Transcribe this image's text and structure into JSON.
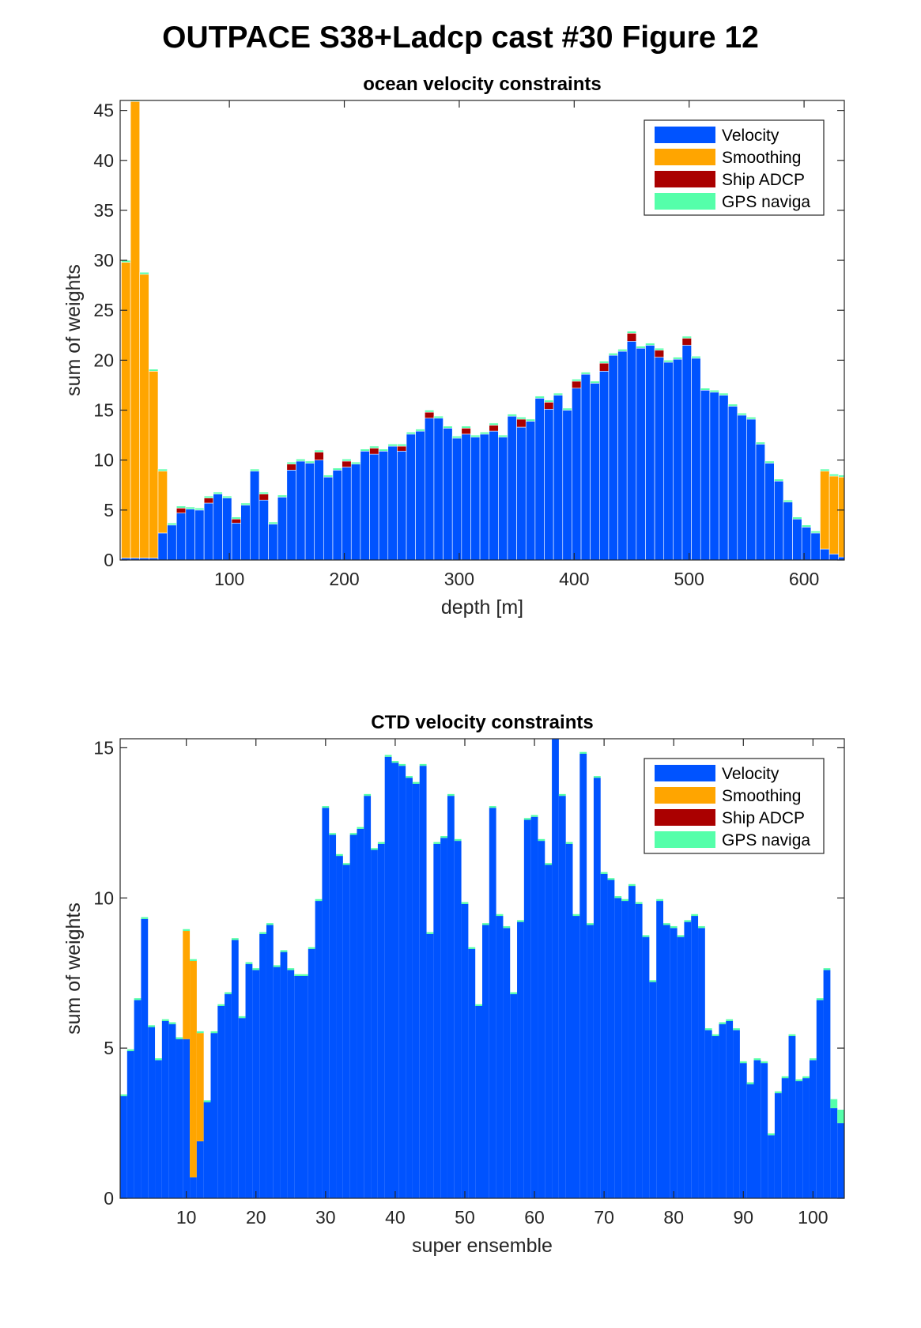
{
  "figure": {
    "title": "OUTPACE S38+Ladcp cast #30  Figure 12"
  },
  "colors": {
    "velocity": "#0053ff",
    "smoothing": "#ffa500",
    "ship_adcp": "#aa0000",
    "gps": "#55ffaa"
  },
  "chart_data": [
    {
      "type": "bar",
      "stacked": true,
      "title": "ocean velocity constraints",
      "xlabel": "depth [m]",
      "ylabel": "sum of weights",
      "xlim": [
        5,
        635
      ],
      "ylim": [
        0,
        46
      ],
      "xticks": [
        100,
        200,
        300,
        400,
        500,
        600
      ],
      "yticks": [
        0,
        5,
        10,
        15,
        20,
        25,
        30,
        35,
        40,
        45
      ],
      "grid": false,
      "legend_position": "top-right",
      "legend": [
        "Velocity",
        "Smoothing",
        "Ship ADCP",
        "GPS naviga"
      ],
      "bin_width": 8,
      "x": [
        10,
        18,
        26,
        34,
        42,
        50,
        58,
        66,
        74,
        82,
        90,
        98,
        106,
        114,
        122,
        130,
        138,
        146,
        154,
        162,
        170,
        178,
        186,
        194,
        202,
        210,
        218,
        226,
        234,
        242,
        250,
        258,
        266,
        274,
        282,
        290,
        298,
        306,
        314,
        322,
        330,
        338,
        346,
        354,
        362,
        370,
        378,
        386,
        394,
        402,
        410,
        418,
        426,
        434,
        442,
        450,
        458,
        466,
        474,
        482,
        490,
        498,
        506,
        514,
        522,
        530,
        538,
        546,
        554,
        562,
        570,
        578,
        586,
        594,
        602,
        610,
        618,
        626,
        634
      ],
      "series": [
        {
          "name": "Velocity",
          "values": [
            0.2,
            0.2,
            0.2,
            0.2,
            2.7,
            3.5,
            4.7,
            5.1,
            5.0,
            5.7,
            6.6,
            6.2,
            3.7,
            5.5,
            8.9,
            6.0,
            3.6,
            6.3,
            9.0,
            9.9,
            9.7,
            10.0,
            8.3,
            9.0,
            9.3,
            9.6,
            10.9,
            10.6,
            10.9,
            11.4,
            10.9,
            12.6,
            12.9,
            14.2,
            14.2,
            13.2,
            12.2,
            12.6,
            12.3,
            12.6,
            12.9,
            12.3,
            14.4,
            13.3,
            13.9,
            16.2,
            15.1,
            16.5,
            15.0,
            17.2,
            18.6,
            17.7,
            18.9,
            20.5,
            20.9,
            21.9,
            21.2,
            21.5,
            20.3,
            19.8,
            20.1,
            21.5,
            20.2,
            17.0,
            16.8,
            16.5,
            15.4,
            14.5,
            14.1,
            11.6,
            9.7,
            7.9,
            5.8,
            4.1,
            3.3,
            2.7,
            1.1,
            0.6,
            0.3
          ]
        },
        {
          "name": "Smoothing",
          "values": [
            29.6,
            45.7,
            28.4,
            18.7,
            6.2,
            0,
            0,
            0,
            0,
            0,
            0,
            0,
            0,
            0,
            0,
            0,
            0,
            0,
            0,
            0,
            0,
            0,
            0,
            0,
            0,
            0,
            0,
            0,
            0,
            0,
            0,
            0,
            0,
            0,
            0,
            0,
            0,
            0,
            0,
            0,
            0,
            0,
            0,
            0,
            0,
            0,
            0,
            0,
            0,
            0,
            0,
            0,
            0,
            0,
            0,
            0,
            0,
            0,
            0,
            0,
            0,
            0,
            0,
            0,
            0,
            0,
            0,
            0,
            0,
            0,
            0,
            0,
            0,
            0,
            0,
            0,
            7.8,
            7.8,
            8.0
          ]
        },
        {
          "name": "Ship ADCP",
          "values": [
            0,
            0,
            0,
            0,
            0,
            0,
            0.5,
            0,
            0,
            0.5,
            0,
            0,
            0.4,
            0,
            0,
            0.6,
            0,
            0,
            0.6,
            0,
            0,
            0.8,
            0,
            0,
            0.6,
            0,
            0,
            0.6,
            0,
            0,
            0.5,
            0,
            0,
            0.6,
            0,
            0,
            0,
            0.6,
            0,
            0,
            0.6,
            0,
            0,
            0.8,
            0,
            0,
            0.7,
            0,
            0,
            0.7,
            0,
            0,
            0.8,
            0,
            0,
            0.8,
            0,
            0,
            0.7,
            0,
            0,
            0.7,
            0,
            0,
            0,
            0,
            0,
            0,
            0,
            0,
            0,
            0,
            0,
            0,
            0,
            0,
            0,
            0,
            0
          ]
        },
        {
          "name": "GPS naviga",
          "values": [
            0.2,
            0.2,
            0.2,
            0.2,
            0.2,
            0.2,
            0.2,
            0.2,
            0.2,
            0.2,
            0.2,
            0.2,
            0.2,
            0.2,
            0.2,
            0.2,
            0.2,
            0.2,
            0.2,
            0.2,
            0.2,
            0.2,
            0.2,
            0.2,
            0.2,
            0.2,
            0.2,
            0.2,
            0.2,
            0.2,
            0.2,
            0.2,
            0.2,
            0.2,
            0.2,
            0.2,
            0.2,
            0.2,
            0.2,
            0.2,
            0.2,
            0.2,
            0.2,
            0.2,
            0.2,
            0.2,
            0.2,
            0.2,
            0.2,
            0.2,
            0.2,
            0.2,
            0.2,
            0.2,
            0.2,
            0.2,
            0.2,
            0.2,
            0.2,
            0.2,
            0.2,
            0.2,
            0.2,
            0.2,
            0.2,
            0.2,
            0.2,
            0.2,
            0.2,
            0.2,
            0.2,
            0.2,
            0.2,
            0.2,
            0.2,
            0.2,
            0.2,
            0.2,
            0.2
          ]
        }
      ]
    },
    {
      "type": "bar",
      "stacked": true,
      "title": "CTD velocity constraints",
      "xlabel": "super ensemble",
      "ylabel": "sum of weights",
      "xlim": [
        0.5,
        104.5
      ],
      "ylim": [
        0,
        15.3
      ],
      "xticks": [
        10,
        20,
        30,
        40,
        50,
        60,
        70,
        80,
        90,
        100
      ],
      "yticks": [
        0,
        5,
        10,
        15
      ],
      "grid": false,
      "legend_position": "top-right",
      "legend": [
        "Velocity",
        "Smoothing",
        "Ship ADCP",
        "GPS naviga"
      ],
      "bin_width": 1,
      "x": [
        1,
        2,
        3,
        4,
        5,
        6,
        7,
        8,
        9,
        10,
        11,
        12,
        13,
        14,
        15,
        16,
        17,
        18,
        19,
        20,
        21,
        22,
        23,
        24,
        25,
        26,
        27,
        28,
        29,
        30,
        31,
        32,
        33,
        34,
        35,
        36,
        37,
        38,
        39,
        40,
        41,
        42,
        43,
        44,
        45,
        46,
        47,
        48,
        49,
        50,
        51,
        52,
        53,
        54,
        55,
        56,
        57,
        58,
        59,
        60,
        61,
        62,
        63,
        64,
        65,
        66,
        67,
        68,
        69,
        70,
        71,
        72,
        73,
        74,
        75,
        76,
        77,
        78,
        79,
        80,
        81,
        82,
        83,
        84,
        85,
        86,
        87,
        88,
        89,
        90,
        91,
        92,
        93,
        94,
        95,
        96,
        97,
        98,
        99,
        100,
        101,
        102,
        103,
        104
      ],
      "series": [
        {
          "name": "Velocity",
          "values": [
            3.4,
            4.9,
            6.6,
            9.3,
            5.7,
            4.6,
            5.9,
            5.8,
            5.3,
            5.3,
            0.7,
            1.9,
            3.2,
            5.5,
            6.4,
            6.8,
            8.6,
            6.0,
            7.8,
            7.6,
            8.8,
            9.1,
            7.7,
            8.2,
            7.6,
            7.4,
            7.4,
            8.3,
            9.9,
            13.0,
            12.1,
            11.4,
            11.1,
            12.1,
            12.3,
            13.4,
            11.6,
            11.8,
            14.7,
            14.5,
            14.4,
            14.0,
            13.8,
            14.4,
            8.8,
            11.8,
            12.0,
            13.4,
            11.9,
            9.8,
            8.3,
            6.4,
            9.1,
            13.0,
            9.4,
            9.0,
            6.8,
            9.2,
            12.6,
            12.7,
            11.9,
            11.1,
            15.3,
            13.4,
            11.8,
            9.4,
            14.8,
            9.1,
            14.0,
            10.8,
            10.6,
            10.0,
            9.9,
            10.4,
            9.8,
            8.7,
            7.2,
            9.9,
            9.1,
            9.0,
            8.7,
            9.2,
            9.4,
            9.0,
            5.6,
            5.4,
            5.8,
            5.9,
            5.6,
            4.5,
            3.8,
            4.6,
            4.5,
            2.1,
            3.5,
            4.0,
            5.4,
            3.9,
            4.0,
            4.6,
            6.6,
            7.6,
            3.0,
            2.5
          ]
        },
        {
          "name": "Smoothing",
          "values": [
            0,
            0,
            0,
            0,
            0,
            0,
            0,
            0,
            0,
            3.6,
            7.2,
            3.6,
            0,
            0,
            0,
            0,
            0,
            0,
            0,
            0,
            0,
            0,
            0,
            0,
            0,
            0,
            0,
            0,
            0,
            0,
            0,
            0,
            0,
            0,
            0,
            0,
            0,
            0,
            0,
            0,
            0,
            0,
            0,
            0,
            0,
            0,
            0,
            0,
            0,
            0,
            0,
            0,
            0,
            0,
            0,
            0,
            0,
            0,
            0,
            0,
            0,
            0,
            0,
            0,
            0,
            0,
            0,
            0,
            0,
            0,
            0,
            0,
            0,
            0,
            0,
            0,
            0,
            0,
            0,
            0,
            0,
            0,
            0,
            0,
            0,
            0,
            0,
            0,
            0,
            0,
            0,
            0,
            0,
            0,
            0,
            0,
            0,
            0,
            0,
            0,
            0,
            0,
            0,
            0
          ]
        },
        {
          "name": "Ship ADCP",
          "values": [
            0,
            0,
            0,
            0,
            0,
            0,
            0,
            0,
            0,
            0,
            0,
            0,
            0,
            0,
            0,
            0,
            0,
            0,
            0,
            0,
            0,
            0,
            0,
            0,
            0,
            0,
            0,
            0,
            0,
            0,
            0,
            0,
            0,
            0,
            0,
            0,
            0,
            0,
            0,
            0,
            0,
            0,
            0,
            0,
            0,
            0,
            0,
            0,
            0,
            0,
            0,
            0,
            0,
            0,
            0,
            0,
            0,
            0,
            0,
            0,
            0,
            0,
            0,
            0,
            0,
            0,
            0,
            0,
            0,
            0,
            0,
            0,
            0,
            0,
            0,
            0,
            0,
            0,
            0,
            0,
            0,
            0,
            0,
            0,
            0,
            0,
            0,
            0,
            0,
            0,
            0,
            0,
            0,
            0,
            0,
            0,
            0,
            0,
            0,
            0,
            0,
            0,
            0,
            0
          ]
        },
        {
          "name": "GPS naviga",
          "values": [
            0.06,
            0.06,
            0.06,
            0.06,
            0.06,
            0.06,
            0.06,
            0.06,
            0.06,
            0.06,
            0.06,
            0.06,
            0.06,
            0.06,
            0.06,
            0.06,
            0.06,
            0.06,
            0.06,
            0.06,
            0.06,
            0.06,
            0.06,
            0.06,
            0.06,
            0.06,
            0.06,
            0.06,
            0.06,
            0.06,
            0.06,
            0.06,
            0.06,
            0.06,
            0.06,
            0.06,
            0.06,
            0.06,
            0.06,
            0.06,
            0.06,
            0.06,
            0.06,
            0.06,
            0.06,
            0.06,
            0.06,
            0.06,
            0.06,
            0.06,
            0.06,
            0.06,
            0.06,
            0.06,
            0.06,
            0.06,
            0.06,
            0.06,
            0.06,
            0.06,
            0.06,
            0.06,
            0.06,
            0.06,
            0.06,
            0.06,
            0.06,
            0.06,
            0.06,
            0.06,
            0.06,
            0.06,
            0.06,
            0.06,
            0.06,
            0.06,
            0.06,
            0.06,
            0.06,
            0.06,
            0.06,
            0.06,
            0.06,
            0.06,
            0.06,
            0.06,
            0.06,
            0.06,
            0.06,
            0.06,
            0.06,
            0.06,
            0.06,
            0.06,
            0.06,
            0.06,
            0.06,
            0.06,
            0.06,
            0.06,
            0.06,
            0.06,
            0.3,
            0.45
          ]
        }
      ]
    }
  ]
}
